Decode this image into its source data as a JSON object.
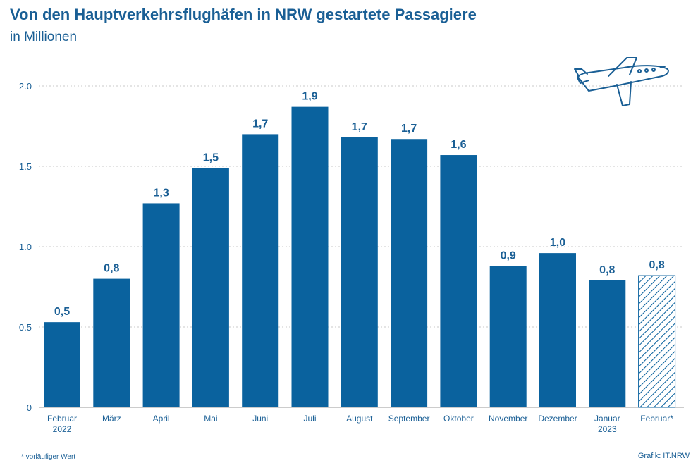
{
  "title": "Von den Hauptverkehrsflughäfen in NRW gestartete Passagiere",
  "subtitle": "in Millionen",
  "footnote": "* vorläufiger Wert",
  "credit": "Grafik: IT.NRW",
  "colors": {
    "bar": "#0a629e",
    "text": "#1a5f95",
    "grid": "#c8c8c8"
  },
  "icons": {
    "decoration": "airplane-icon"
  },
  "chart_data": {
    "type": "bar",
    "title": "Von den Hauptverkehrsflughäfen in NRW gestartete Passagiere",
    "subtitle": "in Millionen",
    "ylim": [
      0,
      2.0
    ],
    "yticks": [
      "0",
      "0.5",
      "1.0",
      "1.5",
      "2.0"
    ],
    "ytick_values": [
      0,
      0.5,
      1.0,
      1.5,
      2.0
    ],
    "grid": true,
    "categories": [
      [
        "Februar",
        "2022"
      ],
      [
        "März"
      ],
      [
        "April"
      ],
      [
        "Mai"
      ],
      [
        "Juni"
      ],
      [
        "Juli"
      ],
      [
        "August"
      ],
      [
        "September"
      ],
      [
        "Oktober"
      ],
      [
        "November"
      ],
      [
        "Dezember"
      ],
      [
        "Januar",
        "2023"
      ],
      [
        "Februar*"
      ]
    ],
    "values": [
      0.53,
      0.8,
      1.27,
      1.49,
      1.7,
      1.87,
      1.68,
      1.67,
      1.57,
      0.88,
      0.96,
      0.79,
      0.82
    ],
    "labels": [
      "0,5",
      "0,8",
      "1,3",
      "1,5",
      "1,7",
      "1,9",
      "1,7",
      "1,7",
      "1,6",
      "0,9",
      "1,0",
      "0,8",
      "0,8"
    ],
    "preliminary": [
      false,
      false,
      false,
      false,
      false,
      false,
      false,
      false,
      false,
      false,
      false,
      false,
      true
    ]
  }
}
